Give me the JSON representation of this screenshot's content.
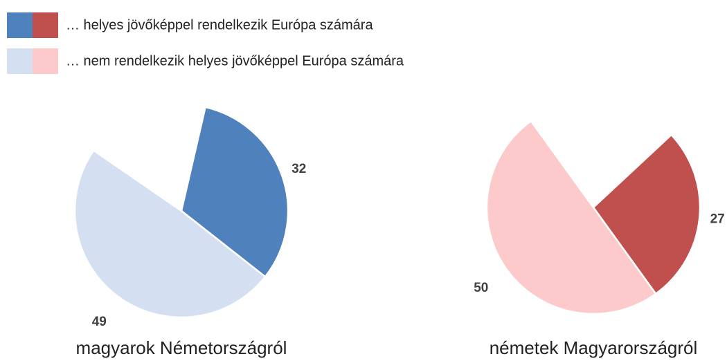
{
  "legend": {
    "labels": [
      "… helyes jövőképpel rendelkezik Európa számára",
      "… nem rendelkezik helyes jövőképpel Európa számára"
    ]
  },
  "chart_data": [
    {
      "type": "pie",
      "title": "magyarok Németországról",
      "values": [
        32,
        49
      ],
      "colors": [
        "#4f81bd",
        "#d4e0f1"
      ]
    },
    {
      "type": "pie",
      "title": "németek Magyarországról",
      "values": [
        27,
        50
      ],
      "colors": [
        "#c0504d",
        "#fdcacb"
      ]
    }
  ]
}
